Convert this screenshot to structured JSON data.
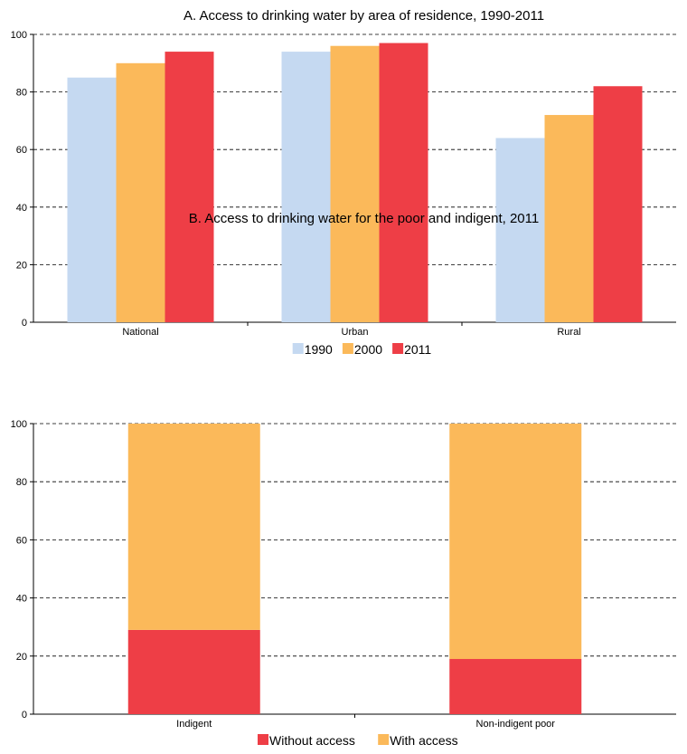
{
  "chart_data": [
    {
      "type": "bar",
      "title": "A. Access to drinking water by area of residence, 1990-2011",
      "categories": [
        "National",
        "Urban",
        "Rural"
      ],
      "series": [
        {
          "name": "1990",
          "color": "#c5d9f1",
          "values": [
            85,
            94,
            64
          ]
        },
        {
          "name": "2000",
          "color": "#fbb95a",
          "values": [
            90,
            96,
            72
          ]
        },
        {
          "name": "2011",
          "color": "#ee3e46",
          "values": [
            94,
            97,
            82
          ]
        }
      ],
      "ylim": [
        0,
        100
      ],
      "yticks": [
        0,
        20,
        40,
        60,
        80,
        100
      ],
      "grid": true,
      "legend": "bottom"
    },
    {
      "type": "bar",
      "stacked": true,
      "title": "B. Access to drinking water for the poor and indigent, 2011",
      "categories": [
        "Indigent",
        "Non-indigent poor"
      ],
      "series": [
        {
          "name": "Without access",
          "color": "#ee3e46",
          "values": [
            29,
            19
          ]
        },
        {
          "name": "With access",
          "color": "#fbb95a",
          "values": [
            71,
            81
          ]
        }
      ],
      "ylim": [
        0,
        100
      ],
      "yticks": [
        0,
        20,
        40,
        60,
        80,
        100
      ],
      "grid": true,
      "legend": "bottom"
    }
  ]
}
